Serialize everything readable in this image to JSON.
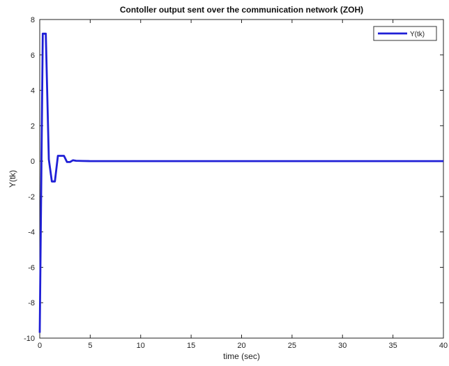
{
  "chart_data": {
    "type": "line",
    "title": "Contoller output sent over the communication network (ZOH)",
    "xlabel": "time (sec)",
    "ylabel": "Y(tk)",
    "xlim": [
      0,
      40
    ],
    "ylim": [
      -10,
      8
    ],
    "xticks": [
      0,
      5,
      10,
      15,
      20,
      25,
      30,
      35,
      40
    ],
    "yticks": [
      -10,
      -8,
      -6,
      -4,
      -2,
      0,
      2,
      4,
      6,
      8
    ],
    "grid": false,
    "legend_position": "top-right",
    "series": [
      {
        "name": "Y(tk)",
        "color": "#1f1fd6",
        "x": [
          0.0,
          0.3,
          0.3,
          0.6,
          0.6,
          0.9,
          0.9,
          1.2,
          1.2,
          1.5,
          1.5,
          1.8,
          1.8,
          2.1,
          2.1,
          2.4,
          2.4,
          2.7,
          2.7,
          3.0,
          3.0,
          3.3,
          3.3,
          3.6,
          3.6,
          4.2,
          5.0,
          6.0,
          40.0
        ],
        "y": [
          -9.7,
          7.2,
          7.2,
          7.2,
          7.2,
          0.1,
          0.1,
          -1.15,
          -1.15,
          -1.15,
          -1.15,
          0.3,
          0.3,
          0.3,
          0.3,
          0.3,
          0.3,
          -0.05,
          -0.05,
          -0.05,
          -0.05,
          0.05,
          0.05,
          0.02,
          0.02,
          0.01,
          0.0,
          0.0,
          0.0
        ]
      }
    ]
  }
}
